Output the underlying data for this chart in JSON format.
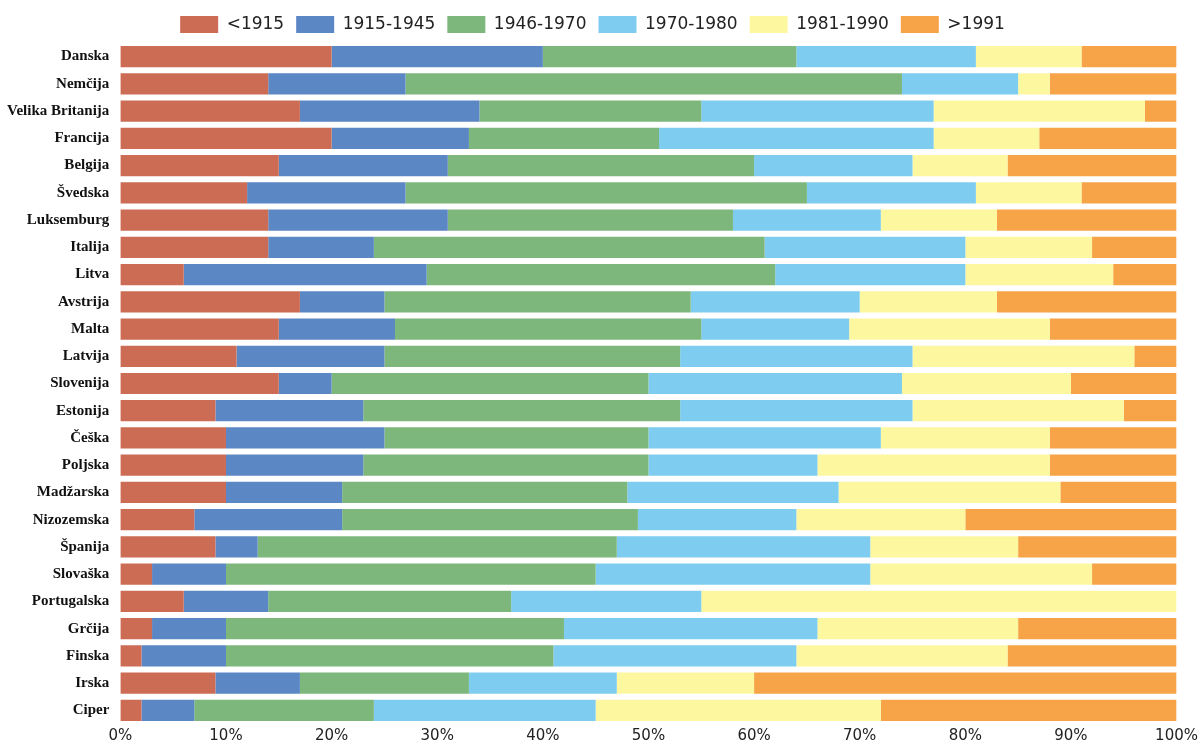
{
  "chart_data": {
    "type": "bar",
    "orientation": "horizontal",
    "stacked": true,
    "legend": "top",
    "grid": false,
    "categories": [
      "Danska",
      "Nemčija",
      "Velika Britanija",
      "Francija",
      "Belgija",
      "Švedska",
      "Luksemburg",
      "Italija",
      "Litva",
      "Avstrija",
      "Malta",
      "Latvija",
      "Slovenija",
      "Estonija",
      "Češka",
      "Poljska",
      "Madžarska",
      "Nizozemska",
      "Španija",
      "Slovaška",
      "Portugalska",
      "Grčija",
      "Finska",
      "Irska",
      "Ciper"
    ],
    "xlim": [
      0,
      100
    ],
    "xticks": [
      {
        "value": 0,
        "label": "0%"
      },
      {
        "value": 10,
        "label": "10%"
      },
      {
        "value": 20,
        "label": "20%"
      },
      {
        "value": 30,
        "label": "30%"
      },
      {
        "value": 40,
        "label": "40%"
      },
      {
        "value": 50,
        "label": "50%"
      },
      {
        "value": 60,
        "label": "60%"
      },
      {
        "value": 70,
        "label": "70%"
      },
      {
        "value": 80,
        "label": "80%"
      },
      {
        "value": 90,
        "label": "90%"
      },
      {
        "value": 100,
        "label": "100%"
      }
    ],
    "series": [
      {
        "name": "<1915",
        "color": "#cd6c55",
        "values": [
          20,
          14,
          17,
          20,
          15,
          12,
          14,
          14,
          6,
          17,
          15,
          11,
          15,
          9,
          10,
          10,
          10,
          7,
          9,
          3,
          6,
          3,
          2,
          9,
          2
        ]
      },
      {
        "name": "1915-1945",
        "color": "#5b87c5",
        "values": [
          20,
          13,
          17,
          13,
          16,
          15,
          17,
          10,
          23,
          8,
          11,
          14,
          5,
          14,
          15,
          13,
          11,
          14,
          4,
          7,
          8,
          7,
          8,
          8,
          5
        ]
      },
      {
        "name": "1946-1970",
        "color": "#7db77b",
        "values": [
          24,
          47,
          21,
          18,
          29,
          38,
          27,
          37,
          33,
          29,
          29,
          28,
          30,
          30,
          25,
          27,
          27,
          28,
          34,
          35,
          23,
          32,
          31,
          16,
          17
        ]
      },
      {
        "name": "1970-1980",
        "color": "#7ecdf0",
        "values": [
          17,
          11,
          22,
          26,
          15,
          16,
          14,
          19,
          18,
          16,
          14,
          22,
          24,
          22,
          22,
          16,
          20,
          15,
          24,
          26,
          18,
          24,
          23,
          14,
          21
        ]
      },
      {
        "name": "1981-1990",
        "color": "#fdf7a0",
        "values": [
          10,
          3,
          20,
          10,
          9,
          10,
          11,
          12,
          14,
          13,
          19,
          21,
          16,
          20,
          16,
          22,
          21,
          16,
          14,
          21,
          45,
          19,
          20,
          13,
          27
        ]
      },
      {
        "name": ">1991",
        "color": "#f6a447",
        "values": [
          9,
          12,
          3,
          13,
          16,
          9,
          17,
          8,
          6,
          17,
          12,
          4,
          10,
          5,
          12,
          12,
          11,
          20,
          15,
          8,
          0,
          15,
          16,
          40,
          28
        ]
      }
    ]
  }
}
